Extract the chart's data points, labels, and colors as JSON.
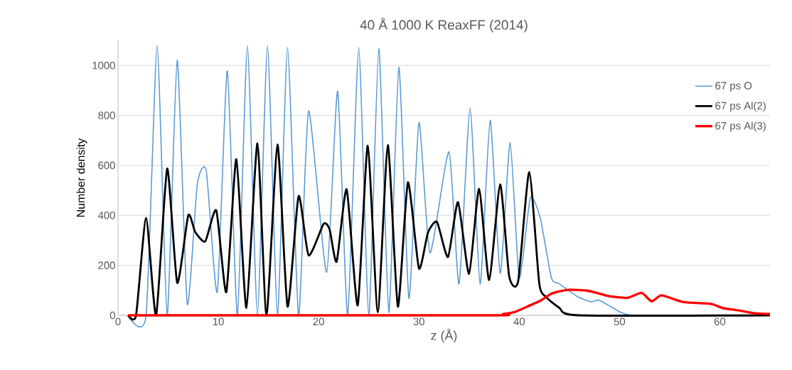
{
  "chart_data": {
    "type": "line",
    "title": "40 Å 1000 K ReaxFF (2014)",
    "xlabel": "z (Å)",
    "ylabel": "Number density",
    "xlim": [
      0,
      65
    ],
    "ylim": [
      0,
      1100
    ],
    "xticks": [
      0,
      10,
      20,
      30,
      40,
      50,
      60
    ],
    "yticks": [
      0,
      200,
      400,
      600,
      800,
      1000
    ],
    "grid": "y",
    "legend": "top right",
    "marker": "none",
    "line_style": "solid",
    "series": [
      {
        "name": "67 ps O",
        "color": "#5b9bd5",
        "x": [
          1,
          2.8,
          3.9,
          4.9,
          5.9,
          6.9,
          7.9,
          8.8,
          9.9,
          10.9,
          11.9,
          12.9,
          13.9,
          14.9,
          15.9,
          16.9,
          18.0,
          19.0,
          20.8,
          21.9,
          22.9,
          24.0,
          25.0,
          26.0,
          27.0,
          28.0,
          29.0,
          30.0,
          31.1,
          33.0,
          34.0,
          35.1,
          36.1,
          37.1,
          38.1,
          39.1,
          40.0,
          41.1,
          42.1,
          43.2,
          44.0,
          45.9,
          47.2,
          48.0,
          50.1,
          51.1
        ],
        "values": [
          0,
          0,
          1080,
          0,
          1022,
          46,
          523,
          578,
          93,
          979,
          0,
          1080,
          0,
          1080,
          0,
          1072,
          0,
          818,
          172,
          897,
          0,
          1072,
          0,
          1067,
          12,
          993,
          68,
          771,
          250,
          654,
          125,
          830,
          125,
          781,
          168,
          691,
          150,
          469,
          390,
          151,
          126,
          73,
          54,
          60,
          12,
          0
        ]
      },
      {
        "name": "67 ps Al(2)",
        "color": "#000000",
        "x": [
          1,
          1.8,
          2.8,
          3.8,
          4.9,
          5.9,
          7.0,
          7.7,
          8.7,
          9.8,
          10.8,
          11.8,
          12.8,
          13.9,
          14.8,
          15.9,
          16.9,
          18.0,
          19.0,
          20.5,
          21.1,
          21.8,
          22.8,
          23.9,
          24.9,
          25.9,
          26.9,
          27.9,
          28.9,
          30.0,
          30.9,
          31.8,
          32.9,
          33.9,
          35.0,
          36.0,
          37.0,
          38.1,
          39.0,
          39.9,
          41.0,
          42.0,
          42.7,
          44.0,
          45.9,
          65
        ],
        "values": [
          0,
          0,
          390,
          0,
          587,
          130,
          400,
          333,
          296,
          420,
          93,
          625,
          30,
          688,
          0,
          683,
          35,
          477,
          240,
          366,
          343,
          215,
          504,
          40,
          679,
          12,
          681,
          35,
          532,
          188,
          331,
          374,
          233,
          453,
          166,
          506,
          141,
          524,
          156,
          137,
          574,
          127,
          73,
          30,
          0,
          0
        ]
      },
      {
        "name": "67 ps Al(3)",
        "color": "#ff0000",
        "x": [
          1,
          37,
          38.4,
          39.6,
          41.1,
          42.1,
          43.3,
          44.9,
          46.9,
          48.9,
          50.8,
          52.2,
          53.2,
          54.2,
          56.4,
          59.1,
          60.3,
          62.0,
          63.5,
          65
        ],
        "values": [
          0,
          0,
          5,
          14,
          40,
          58,
          88,
          102,
          98,
          77,
          70,
          90,
          56,
          80,
          53,
          46,
          29,
          19,
          8,
          5
        ]
      }
    ]
  }
}
